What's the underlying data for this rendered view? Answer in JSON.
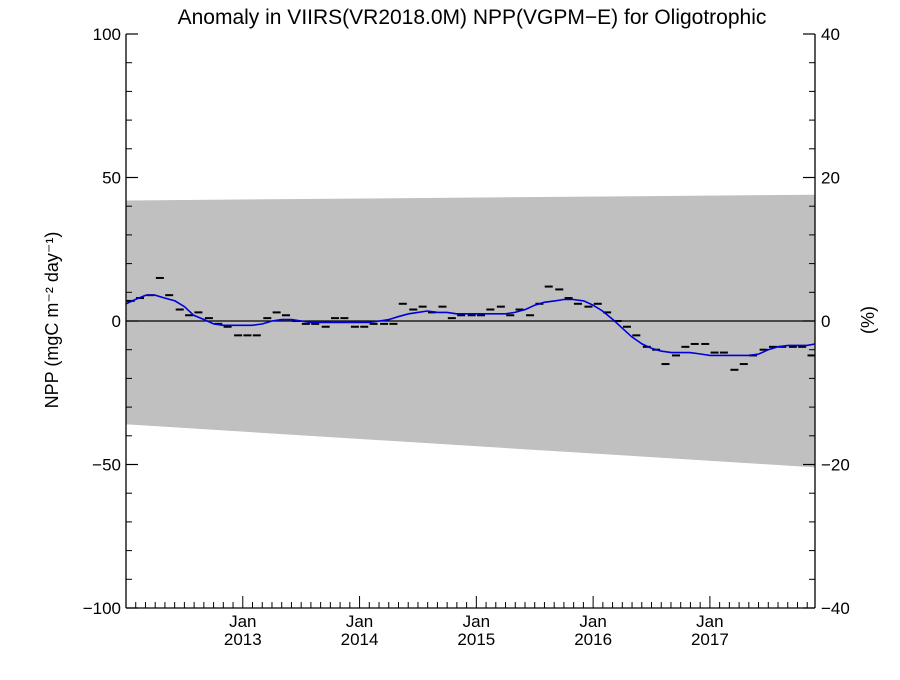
{
  "chart_data": {
    "type": "line",
    "title": "Anomaly in VIIRS(VR2018.0M) NPP(VGPM−E) for Oligotrophic",
    "ylabel_left": "NPP (mgC m⁻² day⁻¹)",
    "ylabel_right": "(%)",
    "ylim_left": [
      -100,
      100
    ],
    "ylim_right": [
      -40,
      40
    ],
    "left_ticks": [
      100,
      50,
      0,
      -50,
      -100
    ],
    "left_tick_labels": [
      "100",
      "50",
      "0",
      "−50",
      "−100"
    ],
    "right_ticks": [
      40,
      20,
      0,
      -20,
      -40
    ],
    "right_tick_labels": [
      "40",
      "20",
      "0",
      "−20",
      "−40"
    ],
    "x_range": [
      2012.0,
      2017.9
    ],
    "x_ticks": [
      {
        "x": 2013.0,
        "month": "Jan",
        "year": "2013"
      },
      {
        "x": 2014.0,
        "month": "Jan",
        "year": "2014"
      },
      {
        "x": 2015.0,
        "month": "Jan",
        "year": "2015"
      },
      {
        "x": 2016.0,
        "month": "Jan",
        "year": "2016"
      },
      {
        "x": 2017.0,
        "month": "Jan",
        "year": "2017"
      }
    ],
    "zero_line": true,
    "band": {
      "color": "#c0c0c0",
      "upper": [
        [
          2012.0,
          42
        ],
        [
          2017.9,
          44
        ]
      ],
      "lower": [
        [
          2012.0,
          -36
        ],
        [
          2017.9,
          -51
        ]
      ]
    },
    "series": [
      {
        "kind": "markers",
        "color": "#000000",
        "points": [
          [
            2012.04,
            7
          ],
          [
            2012.12,
            8
          ],
          [
            2012.21,
            9
          ],
          [
            2012.29,
            15
          ],
          [
            2012.37,
            9
          ],
          [
            2012.46,
            4
          ],
          [
            2012.54,
            2
          ],
          [
            2012.62,
            3
          ],
          [
            2012.71,
            1
          ],
          [
            2012.79,
            -1
          ],
          [
            2012.87,
            -2
          ],
          [
            2012.96,
            -5
          ],
          [
            2013.04,
            -5
          ],
          [
            2013.12,
            -5
          ],
          [
            2013.21,
            1
          ],
          [
            2013.29,
            3
          ],
          [
            2013.37,
            2
          ],
          [
            2013.46,
            0
          ],
          [
            2013.54,
            -1
          ],
          [
            2013.62,
            -1
          ],
          [
            2013.71,
            -2
          ],
          [
            2013.79,
            1
          ],
          [
            2013.87,
            1
          ],
          [
            2013.96,
            -2
          ],
          [
            2014.04,
            -2
          ],
          [
            2014.12,
            -1
          ],
          [
            2014.21,
            -1
          ],
          [
            2014.29,
            -1
          ],
          [
            2014.37,
            6
          ],
          [
            2014.46,
            4
          ],
          [
            2014.54,
            5
          ],
          [
            2014.62,
            3
          ],
          [
            2014.71,
            5
          ],
          [
            2014.79,
            1
          ],
          [
            2014.87,
            2
          ],
          [
            2014.96,
            2
          ],
          [
            2015.04,
            2
          ],
          [
            2015.12,
            4
          ],
          [
            2015.21,
            5
          ],
          [
            2015.29,
            2
          ],
          [
            2015.37,
            4
          ],
          [
            2015.46,
            2
          ],
          [
            2015.54,
            6
          ],
          [
            2015.62,
            12
          ],
          [
            2015.71,
            11
          ],
          [
            2015.79,
            8
          ],
          [
            2015.87,
            6
          ],
          [
            2015.96,
            5
          ],
          [
            2016.04,
            6
          ],
          [
            2016.12,
            3
          ],
          [
            2016.21,
            0
          ],
          [
            2016.29,
            -2
          ],
          [
            2016.37,
            -5
          ],
          [
            2016.46,
            -9
          ],
          [
            2016.54,
            -10
          ],
          [
            2016.62,
            -15
          ],
          [
            2016.71,
            -12
          ],
          [
            2016.79,
            -9
          ],
          [
            2016.87,
            -8
          ],
          [
            2016.96,
            -8
          ],
          [
            2017.04,
            -11
          ],
          [
            2017.12,
            -11
          ],
          [
            2017.21,
            -17
          ],
          [
            2017.29,
            -15
          ],
          [
            2017.37,
            -12
          ],
          [
            2017.46,
            -10
          ],
          [
            2017.54,
            -9
          ],
          [
            2017.62,
            -9
          ],
          [
            2017.71,
            -9
          ],
          [
            2017.79,
            -9
          ],
          [
            2017.87,
            -12
          ]
        ]
      },
      {
        "kind": "line",
        "color": "#0000dd",
        "points": [
          [
            2012.0,
            6
          ],
          [
            2012.08,
            7.5
          ],
          [
            2012.17,
            9
          ],
          [
            2012.25,
            9
          ],
          [
            2012.33,
            8
          ],
          [
            2012.42,
            7
          ],
          [
            2012.5,
            5
          ],
          [
            2012.58,
            2
          ],
          [
            2012.67,
            0.5
          ],
          [
            2012.75,
            -1
          ],
          [
            2012.83,
            -1.5
          ],
          [
            2012.92,
            -1.5
          ],
          [
            2013.0,
            -1.5
          ],
          [
            2013.08,
            -1.5
          ],
          [
            2013.17,
            -1
          ],
          [
            2013.25,
            0
          ],
          [
            2013.33,
            0.5
          ],
          [
            2013.42,
            0.5
          ],
          [
            2013.5,
            0
          ],
          [
            2013.58,
            -0.5
          ],
          [
            2013.67,
            -0.5
          ],
          [
            2013.75,
            -0.5
          ],
          [
            2013.83,
            -0.5
          ],
          [
            2013.92,
            -0.5
          ],
          [
            2014.0,
            -0.5
          ],
          [
            2014.08,
            -0.5
          ],
          [
            2014.17,
            0
          ],
          [
            2014.25,
            0.5
          ],
          [
            2014.33,
            1.5
          ],
          [
            2014.42,
            2.5
          ],
          [
            2014.5,
            3
          ],
          [
            2014.58,
            3.5
          ],
          [
            2014.67,
            3
          ],
          [
            2014.75,
            3
          ],
          [
            2014.83,
            2.5
          ],
          [
            2014.92,
            2.5
          ],
          [
            2015.0,
            2.5
          ],
          [
            2015.08,
            2.5
          ],
          [
            2015.17,
            2.5
          ],
          [
            2015.25,
            2.5
          ],
          [
            2015.33,
            3
          ],
          [
            2015.42,
            4
          ],
          [
            2015.5,
            5.5
          ],
          [
            2015.58,
            6.5
          ],
          [
            2015.67,
            7
          ],
          [
            2015.75,
            7.5
          ],
          [
            2015.83,
            7.5
          ],
          [
            2015.92,
            7
          ],
          [
            2016.0,
            5.5
          ],
          [
            2016.08,
            3.5
          ],
          [
            2016.17,
            0.5
          ],
          [
            2016.25,
            -2.5
          ],
          [
            2016.33,
            -5.5
          ],
          [
            2016.42,
            -8
          ],
          [
            2016.5,
            -9.5
          ],
          [
            2016.58,
            -10.5
          ],
          [
            2016.67,
            -11
          ],
          [
            2016.75,
            -11
          ],
          [
            2016.83,
            -11
          ],
          [
            2016.92,
            -11.5
          ],
          [
            2017.0,
            -12
          ],
          [
            2017.08,
            -12
          ],
          [
            2017.17,
            -12
          ],
          [
            2017.25,
            -12
          ],
          [
            2017.33,
            -12
          ],
          [
            2017.42,
            -11.5
          ],
          [
            2017.5,
            -10
          ],
          [
            2017.58,
            -9
          ],
          [
            2017.67,
            -8.5
          ],
          [
            2017.75,
            -8.5
          ],
          [
            2017.83,
            -8.5
          ],
          [
            2017.9,
            -8
          ]
        ]
      }
    ]
  }
}
